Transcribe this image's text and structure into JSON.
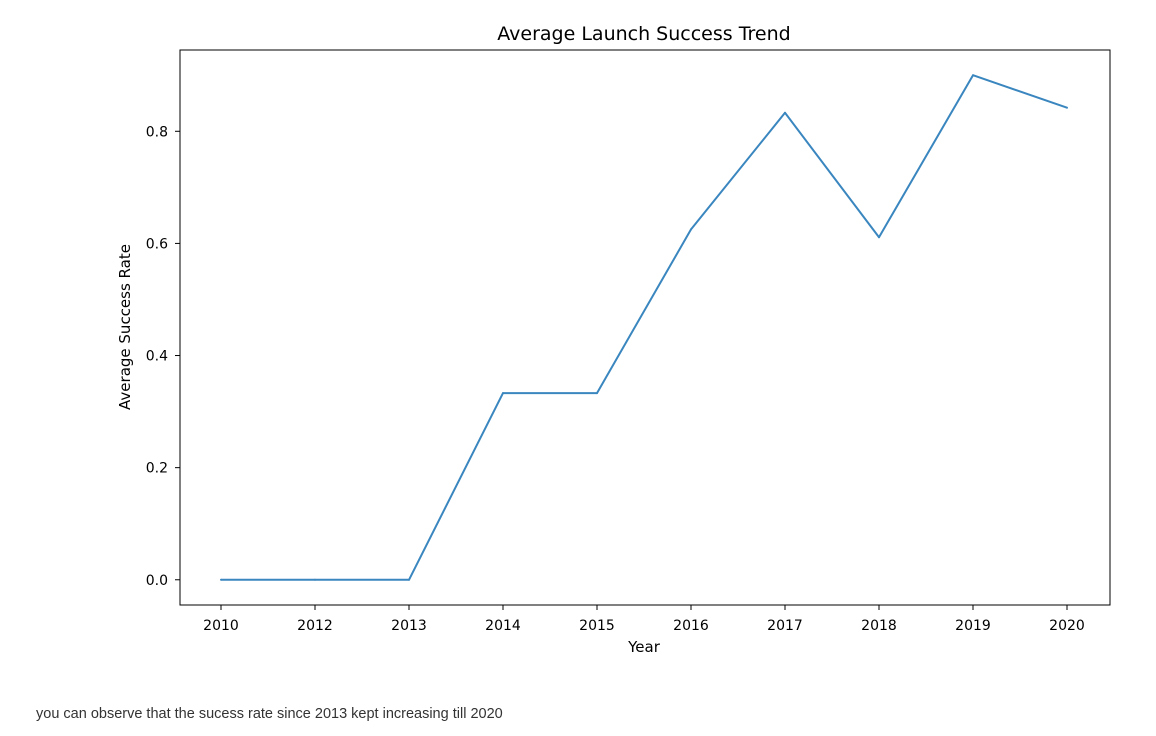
{
  "chart_data": {
    "type": "line",
    "title": "Average Launch Success Trend",
    "xlabel": "Year",
    "ylabel": "Average Success Rate",
    "x_tick_labels": [
      "2010",
      "2012",
      "2013",
      "2014",
      "2015",
      "2016",
      "2017",
      "2018",
      "2019",
      "2020"
    ],
    "y_tick_labels": [
      "0.0",
      "0.2",
      "0.4",
      "0.6",
      "0.8"
    ],
    "y_ticks": [
      0.0,
      0.2,
      0.4,
      0.6,
      0.8
    ],
    "ylim": [
      -0.045,
      0.945
    ],
    "grid": false,
    "legend": false,
    "series": [
      {
        "color": "#3a86bf",
        "x": [
          "2010",
          "2012",
          "2013",
          "2014",
          "2015",
          "2016",
          "2017",
          "2018",
          "2019",
          "2020"
        ],
        "y": [
          0.0,
          0.0,
          0.0,
          0.333,
          0.333,
          0.625,
          0.833,
          0.611,
          0.9,
          0.842
        ]
      }
    ]
  },
  "caption": "you can observe that the sucess rate since 2013 kept increasing till 2020"
}
